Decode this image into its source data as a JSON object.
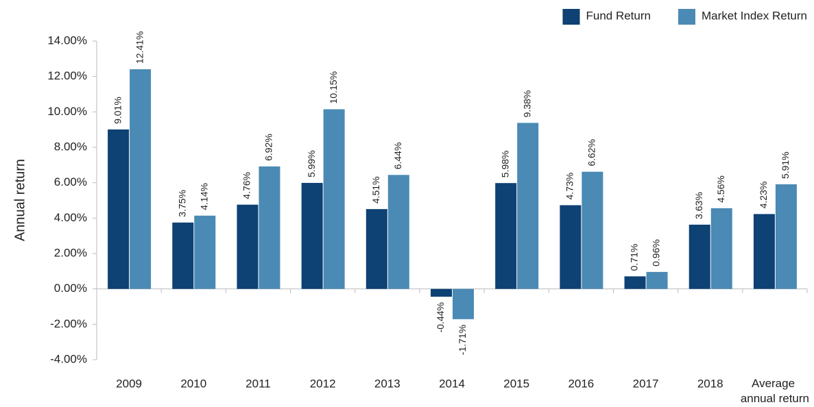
{
  "chart_data": {
    "type": "bar",
    "y_label": "Annual return",
    "categories": [
      "2009",
      "2010",
      "2011",
      "2012",
      "2013",
      "2014",
      "2015",
      "2016",
      "2017",
      "2018",
      "Average annual return"
    ],
    "series": [
      {
        "name": "Fund Return",
        "color": "#0e4174",
        "values": [
          9.01,
          3.75,
          4.76,
          5.99,
          4.51,
          -0.44,
          5.98,
          4.73,
          0.71,
          3.63,
          4.23
        ],
        "value_labels": [
          "9.01%",
          "3.75%",
          "4.76%",
          "5.99%",
          "4.51%",
          "-0.44%",
          "5.98%",
          "4.73%",
          "0.71%",
          "3.63%",
          "4.23%"
        ]
      },
      {
        "name": "Market Index Return",
        "color": "#4a8ab5",
        "values": [
          12.41,
          4.14,
          6.92,
          10.15,
          6.44,
          -1.71,
          9.38,
          6.62,
          0.96,
          4.56,
          5.91
        ],
        "value_labels": [
          "12.41%",
          "4.14%",
          "6.92%",
          "10.15%",
          "6.44%",
          "-1.71%",
          "9.38%",
          "6.62%",
          "0.96%",
          "4.56%",
          "5.91%"
        ]
      }
    ],
    "ylim": [
      -4,
      14
    ],
    "yticks": [
      {
        "value": -4,
        "label": "-4.00%"
      },
      {
        "value": -2,
        "label": "-2.00%"
      },
      {
        "value": 0,
        "label": "0.00%"
      },
      {
        "value": 2,
        "label": "2.00%"
      },
      {
        "value": 4,
        "label": "4.00%"
      },
      {
        "value": 6,
        "label": "6.00%"
      },
      {
        "value": 8,
        "label": "8.00%"
      },
      {
        "value": 10,
        "label": "10.00%"
      },
      {
        "value": 12,
        "label": "12.00%"
      },
      {
        "value": 14,
        "label": "14.00%"
      }
    ],
    "legend": "top-right"
  }
}
